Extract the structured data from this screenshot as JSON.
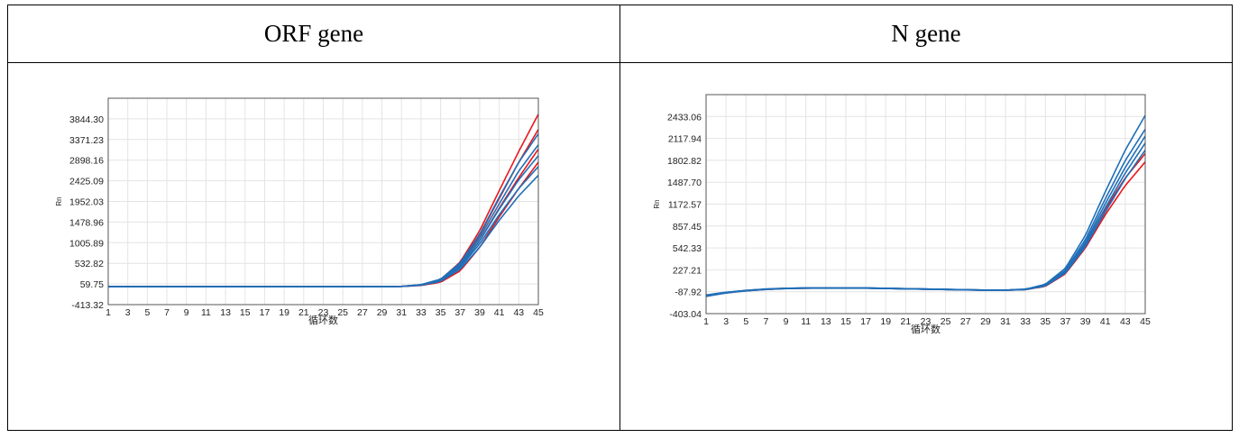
{
  "table": {
    "headers": [
      "ORF gene",
      "N gene"
    ]
  },
  "chart_data": [
    {
      "type": "line",
      "title": "ORF gene",
      "xlabel": "循环数",
      "ylabel": "Rn",
      "xlim": [
        1,
        45
      ],
      "ylim": [
        -413.32,
        4317.37
      ],
      "yticks": [
        -413.32,
        59.75,
        532.82,
        1005.89,
        1478.96,
        1952.03,
        2425.09,
        2898.16,
        3371.23,
        3844.3
      ],
      "xticks": [
        1,
        3,
        5,
        7,
        9,
        11,
        13,
        15,
        17,
        19,
        21,
        23,
        25,
        27,
        29,
        31,
        33,
        35,
        37,
        39,
        41,
        43,
        45
      ],
      "grid": true,
      "series_colors": [
        "#e8161b",
        "#1f6fb8"
      ],
      "series": [
        {
          "name": "",
          "color": "#e8161b",
          "x": [
            1,
            5,
            9,
            13,
            17,
            21,
            25,
            29,
            31,
            33,
            35,
            37,
            39,
            41,
            43,
            45
          ],
          "values": [
            0,
            0,
            0,
            0,
            0,
            0,
            0,
            0,
            5,
            40,
            160,
            560,
            1280,
            2200,
            3100,
            3950
          ]
        },
        {
          "name": "",
          "color": "#e8161b",
          "x": [
            1,
            5,
            9,
            13,
            17,
            21,
            25,
            29,
            31,
            33,
            35,
            37,
            39,
            41,
            43,
            45
          ],
          "values": [
            0,
            0,
            0,
            0,
            0,
            0,
            0,
            0,
            5,
            40,
            150,
            520,
            1180,
            2020,
            2850,
            3600
          ]
        },
        {
          "name": "",
          "color": "#e8161b",
          "x": [
            1,
            5,
            9,
            13,
            17,
            21,
            25,
            29,
            31,
            33,
            35,
            37,
            39,
            41,
            43,
            45
          ],
          "values": [
            0,
            0,
            0,
            0,
            0,
            0,
            0,
            0,
            5,
            35,
            130,
            460,
            1050,
            1800,
            2500,
            3150
          ]
        },
        {
          "name": "",
          "color": "#e8161b",
          "x": [
            1,
            5,
            9,
            13,
            17,
            21,
            25,
            29,
            31,
            33,
            35,
            37,
            39,
            41,
            43,
            45
          ],
          "values": [
            0,
            0,
            0,
            0,
            0,
            0,
            0,
            0,
            3,
            25,
            100,
            360,
            900,
            1600,
            2250,
            2850
          ]
        },
        {
          "name": "",
          "color": "#1f6fb8",
          "x": [
            1,
            5,
            9,
            13,
            17,
            21,
            25,
            29,
            31,
            33,
            35,
            37,
            39,
            41,
            43,
            45
          ],
          "values": [
            0,
            0,
            0,
            0,
            0,
            0,
            0,
            0,
            5,
            45,
            170,
            540,
            1200,
            2050,
            2850,
            3500
          ]
        },
        {
          "name": "",
          "color": "#1f6fb8",
          "x": [
            1,
            5,
            9,
            13,
            17,
            21,
            25,
            29,
            31,
            33,
            35,
            37,
            39,
            41,
            43,
            45
          ],
          "values": [
            0,
            0,
            0,
            0,
            0,
            0,
            0,
            0,
            5,
            40,
            160,
            500,
            1120,
            1900,
            2650,
            3250
          ]
        },
        {
          "name": "",
          "color": "#1f6fb8",
          "x": [
            1,
            5,
            9,
            13,
            17,
            21,
            25,
            29,
            31,
            33,
            35,
            37,
            39,
            41,
            43,
            45
          ],
          "values": [
            0,
            0,
            0,
            0,
            0,
            0,
            0,
            0,
            5,
            40,
            150,
            470,
            1050,
            1780,
            2450,
            3000
          ]
        },
        {
          "name": "",
          "color": "#1f6fb8",
          "x": [
            1,
            5,
            9,
            13,
            17,
            21,
            25,
            29,
            31,
            33,
            35,
            37,
            39,
            41,
            43,
            45
          ],
          "values": [
            0,
            0,
            0,
            0,
            0,
            0,
            0,
            0,
            5,
            35,
            140,
            440,
            980,
            1650,
            2250,
            2750
          ]
        },
        {
          "name": "",
          "color": "#1f6fb8",
          "x": [
            1,
            5,
            9,
            13,
            17,
            21,
            25,
            29,
            31,
            33,
            35,
            37,
            39,
            41,
            43,
            45
          ],
          "values": [
            0,
            0,
            0,
            0,
            0,
            0,
            0,
            0,
            4,
            30,
            120,
            400,
            900,
            1520,
            2080,
            2550
          ]
        }
      ]
    },
    {
      "type": "line",
      "title": "N gene",
      "xlabel": "循环数",
      "ylabel": "Rn",
      "xlim": [
        1,
        45
      ],
      "ylim": [
        -403.04,
        2748.18
      ],
      "yticks": [
        -403.04,
        -87.92,
        227.21,
        542.33,
        857.45,
        1172.57,
        1487.7,
        1802.82,
        2117.94,
        2433.06
      ],
      "xticks": [
        1,
        3,
        5,
        7,
        9,
        11,
        13,
        15,
        17,
        19,
        21,
        23,
        25,
        27,
        29,
        31,
        33,
        35,
        37,
        39,
        41,
        43,
        45
      ],
      "grid": true,
      "series_colors": [
        "#e8161b",
        "#1f6fb8"
      ],
      "series": [
        {
          "name": "",
          "color": "#e8161b",
          "x": [
            1,
            3,
            5,
            7,
            9,
            11,
            13,
            17,
            21,
            25,
            29,
            31,
            33,
            35,
            37,
            39,
            41,
            43,
            45
          ],
          "values": [
            -140,
            -100,
            -70,
            -50,
            -40,
            -35,
            -35,
            -35,
            -45,
            -55,
            -65,
            -65,
            -55,
            0,
            200,
            600,
            1100,
            1550,
            1900
          ]
        },
        {
          "name": "",
          "color": "#e8161b",
          "x": [
            1,
            3,
            5,
            7,
            9,
            11,
            13,
            17,
            21,
            25,
            29,
            31,
            33,
            35,
            37,
            39,
            41,
            43,
            45
          ],
          "values": [
            -150,
            -105,
            -75,
            -55,
            -42,
            -37,
            -36,
            -36,
            -46,
            -56,
            -66,
            -66,
            -58,
            -10,
            170,
            540,
            1020,
            1440,
            1780
          ]
        },
        {
          "name": "",
          "color": "#1f6fb8",
          "x": [
            1,
            3,
            5,
            7,
            9,
            11,
            13,
            17,
            21,
            25,
            29,
            31,
            33,
            35,
            37,
            39,
            41,
            43,
            45
          ],
          "values": [
            -135,
            -95,
            -68,
            -48,
            -38,
            -33,
            -33,
            -33,
            -43,
            -53,
            -63,
            -63,
            -50,
            20,
            250,
            720,
            1350,
            1950,
            2450
          ]
        },
        {
          "name": "",
          "color": "#1f6fb8",
          "x": [
            1,
            3,
            5,
            7,
            9,
            11,
            13,
            17,
            21,
            25,
            29,
            31,
            33,
            35,
            37,
            39,
            41,
            43,
            45
          ],
          "values": [
            -140,
            -98,
            -70,
            -50,
            -39,
            -34,
            -34,
            -34,
            -44,
            -54,
            -64,
            -64,
            -53,
            10,
            220,
            660,
            1250,
            1800,
            2250
          ]
        },
        {
          "name": "",
          "color": "#1f6fb8",
          "x": [
            1,
            3,
            5,
            7,
            9,
            11,
            13,
            17,
            21,
            25,
            29,
            31,
            33,
            35,
            37,
            39,
            41,
            43,
            45
          ],
          "values": [
            -145,
            -100,
            -72,
            -52,
            -40,
            -35,
            -35,
            -35,
            -45,
            -55,
            -65,
            -65,
            -55,
            5,
            200,
            620,
            1180,
            1700,
            2150
          ]
        },
        {
          "name": "",
          "color": "#1f6fb8",
          "x": [
            1,
            3,
            5,
            7,
            9,
            11,
            13,
            17,
            21,
            25,
            29,
            31,
            33,
            35,
            37,
            39,
            41,
            43,
            45
          ],
          "values": [
            -150,
            -102,
            -73,
            -53,
            -41,
            -36,
            -36,
            -36,
            -46,
            -56,
            -66,
            -66,
            -56,
            0,
            190,
            590,
            1120,
            1620,
            2050
          ]
        },
        {
          "name": "",
          "color": "#1f6fb8",
          "x": [
            1,
            3,
            5,
            7,
            9,
            11,
            13,
            17,
            21,
            25,
            29,
            31,
            33,
            35,
            37,
            39,
            41,
            43,
            45
          ],
          "values": [
            -155,
            -106,
            -76,
            -55,
            -43,
            -38,
            -37,
            -37,
            -47,
            -57,
            -67,
            -67,
            -58,
            -5,
            180,
            560,
            1060,
            1540,
            1950
          ]
        }
      ]
    }
  ]
}
